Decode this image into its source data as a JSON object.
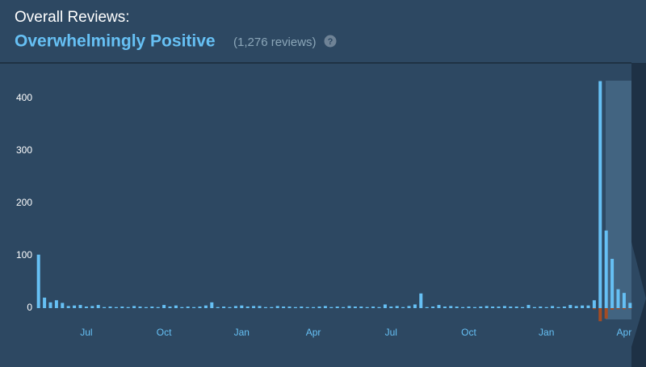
{
  "header": {
    "label": "Overall Reviews:",
    "rating": "Overwhelmingly Positive",
    "count": "(1,276 reviews)",
    "help": "?"
  },
  "chart_data": {
    "type": "bar",
    "categories": [
      null,
      null,
      null,
      null,
      null,
      null,
      null,
      null,
      "Jul",
      null,
      null,
      null,
      null,
      null,
      null,
      null,
      null,
      null,
      null,
      null,
      null,
      "Oct",
      null,
      null,
      null,
      null,
      null,
      null,
      null,
      null,
      null,
      null,
      null,
      null,
      "Jan",
      null,
      null,
      null,
      null,
      null,
      null,
      null,
      null,
      null,
      null,
      null,
      "Apr",
      null,
      null,
      null,
      null,
      null,
      null,
      null,
      null,
      null,
      null,
      null,
      null,
      "Jul",
      null,
      null,
      null,
      null,
      null,
      null,
      null,
      null,
      null,
      null,
      null,
      null,
      "Oct",
      null,
      null,
      null,
      null,
      null,
      null,
      null,
      null,
      null,
      null,
      null,
      null,
      "Jan",
      null,
      null,
      null,
      null,
      null,
      null,
      null,
      null,
      null,
      null,
      null,
      null,
      "Apr",
      null
    ],
    "series": [
      {
        "color": "#66c0f4",
        "values": [
          102,
          20,
          11,
          15,
          10,
          4,
          5,
          6,
          3,
          4,
          6,
          2,
          3,
          2,
          3,
          2,
          4,
          3,
          2,
          3,
          2,
          6,
          3,
          5,
          2,
          3,
          2,
          3,
          5,
          11,
          2,
          3,
          2,
          4,
          5,
          3,
          4,
          4,
          2,
          2,
          4,
          3,
          3,
          2,
          3,
          2,
          2,
          3,
          4,
          2,
          3,
          2,
          4,
          3,
          3,
          2,
          3,
          2,
          7,
          3,
          4,
          2,
          4,
          7,
          28,
          2,
          3,
          6,
          3,
          4,
          3,
          2,
          3,
          2,
          3,
          4,
          3,
          3,
          4,
          3,
          3,
          2,
          6,
          2,
          3,
          2,
          4,
          2,
          3,
          6,
          4,
          5,
          5,
          15,
          433,
          148,
          94,
          36,
          29,
          10
        ]
      },
      {
        "color": "#a34c25",
        "values": [
          0,
          0,
          0,
          0,
          0,
          0,
          0,
          0,
          0,
          0,
          0,
          0,
          0,
          0,
          0,
          0,
          0,
          0,
          0,
          0,
          0,
          0,
          0,
          0,
          0,
          0,
          0,
          0,
          0,
          0,
          0,
          0,
          0,
          0,
          0,
          0,
          0,
          0,
          0,
          0,
          0,
          0,
          0,
          0,
          0,
          0,
          0,
          0,
          0,
          0,
          0,
          0,
          0,
          0,
          0,
          0,
          0,
          0,
          0,
          0,
          0,
          0,
          0,
          0,
          0,
          0,
          0,
          0,
          0,
          0,
          0,
          0,
          0,
          0,
          0,
          0,
          0,
          0,
          0,
          0,
          0,
          0,
          0,
          0,
          0,
          0,
          0,
          0,
          0,
          0,
          0,
          0,
          0,
          -2,
          -25,
          -20,
          -3,
          -2,
          -2,
          -1
        ]
      }
    ],
    "ylim": [
      -30,
      450
    ],
    "yticks": [
      0,
      100,
      200,
      300,
      400
    ]
  }
}
